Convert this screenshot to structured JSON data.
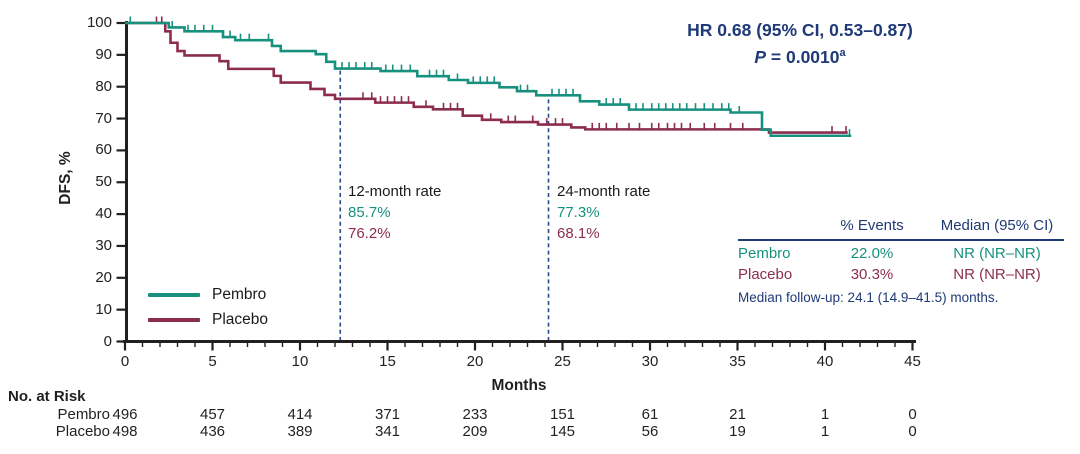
{
  "colors": {
    "pembro": "#17917E",
    "placebo": "#8C2D50",
    "navy": "#1F3A76",
    "dashed_line": "#2A4C8C",
    "axis": "#231F20"
  },
  "annotations": {
    "hr_line": "HR 0.68 (95% CI, 0.53–0.87)",
    "p_label": "P",
    "p_value": " = 0.0010",
    "p_superscript": "a"
  },
  "legend": {
    "items": [
      {
        "label": "Pembro",
        "color": "#17917E"
      },
      {
        "label": "Placebo",
        "color": "#8C2D50"
      }
    ]
  },
  "stats_table": {
    "headers": [
      "% Events",
      "Median (95% CI)"
    ],
    "rows": [
      {
        "label": "Pembro",
        "events": "22.0%",
        "median": "NR (NR–NR)",
        "color": "#17917E"
      },
      {
        "label": "Placebo",
        "events": "30.3%",
        "median": "NR (NR–NR)",
        "color": "#8C2D50"
      }
    ],
    "footnote": "Median follow-up: 24.1 (14.9–41.5) months."
  },
  "at_risk": {
    "title": "No. at Risk",
    "times": [
      0,
      5,
      10,
      15,
      20,
      25,
      30,
      35,
      40,
      45
    ],
    "rows": [
      {
        "label": "Pembro",
        "counts": [
          "496",
          "457",
          "414",
          "371",
          "233",
          "151",
          "61",
          "21",
          "1",
          "0"
        ]
      },
      {
        "label": "Placebo",
        "counts": [
          "498",
          "436",
          "389",
          "341",
          "209",
          "145",
          "56",
          "19",
          "1",
          "0"
        ]
      }
    ]
  },
  "chart_data": {
    "type": "km_step",
    "title": "",
    "xlabel": "Months",
    "ylabel": "DFS, %",
    "xlim": [
      0,
      45
    ],
    "ylim": [
      0,
      100
    ],
    "x_major_ticks": [
      0,
      5,
      10,
      15,
      20,
      25,
      30,
      35,
      40,
      45
    ],
    "x_minor_step": 1,
    "y_ticks": [
      0,
      10,
      20,
      30,
      40,
      50,
      60,
      70,
      80,
      90,
      100
    ],
    "grid": false,
    "legend_position": "lower-left",
    "series": [
      {
        "name": "Pembro",
        "color": "#17917E",
        "end_month": 41.5,
        "steps": [
          [
            2.5,
            98.6
          ],
          [
            3.4,
            97.4
          ],
          [
            5.6,
            95.6
          ],
          [
            6.3,
            94.6
          ],
          [
            8.4,
            92.8
          ],
          [
            8.9,
            91.2
          ],
          [
            10.9,
            90.2
          ],
          [
            11.5,
            87.8
          ],
          [
            12.0,
            85.7
          ],
          [
            14.6,
            84.9
          ],
          [
            16.7,
            83.3
          ],
          [
            18.5,
            82.1
          ],
          [
            19.6,
            81.2
          ],
          [
            21.4,
            79.8
          ],
          [
            22.4,
            78.6
          ],
          [
            23.5,
            77.3
          ],
          [
            26.0,
            75.4
          ],
          [
            27.1,
            74.4
          ],
          [
            28.8,
            72.8
          ],
          [
            34.6,
            71.9
          ],
          [
            36.4,
            66.5
          ],
          [
            36.9,
            64.6
          ]
        ],
        "censor_months": [
          0.3,
          2.7,
          3.6,
          4.0,
          4.5,
          5.0,
          6.0,
          6.6,
          7.1,
          8.2,
          12.4,
          12.8,
          13.2,
          13.7,
          14.1,
          14.9,
          15.3,
          15.8,
          16.3,
          17.4,
          17.8,
          18.2,
          19.0,
          19.9,
          20.3,
          20.7,
          21.1,
          22.6,
          23.0,
          24.4,
          24.8,
          25.2,
          25.6,
          27.5,
          27.9,
          28.3,
          29.2,
          29.6,
          30.1,
          30.5,
          30.9,
          31.3,
          31.7,
          32.1,
          32.6,
          33.1,
          33.6,
          34.1,
          34.5,
          35.1,
          41.4
        ],
        "landmark_rates": {
          "12_month": "85.7%",
          "24_month": "77.3%"
        }
      },
      {
        "name": "Placebo",
        "color": "#8C2D50",
        "end_month": 41.3,
        "steps": [
          [
            2.3,
            97.4
          ],
          [
            2.6,
            93.8
          ],
          [
            3.0,
            91.2
          ],
          [
            3.4,
            89.8
          ],
          [
            5.4,
            88.0
          ],
          [
            5.9,
            85.6
          ],
          [
            8.5,
            83.4
          ],
          [
            8.9,
            81.3
          ],
          [
            10.6,
            79.3
          ],
          [
            11.4,
            77.4
          ],
          [
            12.0,
            76.2
          ],
          [
            14.3,
            75.0
          ],
          [
            16.5,
            73.7
          ],
          [
            17.6,
            72.9
          ],
          [
            19.3,
            70.9
          ],
          [
            20.4,
            69.6
          ],
          [
            21.5,
            68.9
          ],
          [
            23.6,
            68.1
          ],
          [
            25.5,
            67.2
          ],
          [
            26.3,
            66.6
          ],
          [
            36.8,
            65.6
          ]
        ],
        "censor_months": [
          1.8,
          2.1,
          13.6,
          14.1,
          14.6,
          15.0,
          15.4,
          15.8,
          16.2,
          17.2,
          18.2,
          18.6,
          19.0,
          20.9,
          21.9,
          22.3,
          23.3,
          24.1,
          24.6,
          25.0,
          26.7,
          27.1,
          27.5,
          28.1,
          28.8,
          29.4,
          30.1,
          30.5,
          31.0,
          31.4,
          31.8,
          32.3,
          33.1,
          33.7,
          34.6,
          35.3,
          40.4,
          41.2
        ],
        "landmark_rates": {
          "12_month": "76.2%",
          "24_month": "68.1%"
        }
      }
    ],
    "landmarks": [
      {
        "x": 12.3,
        "title": "12-month rate",
        "values": [
          {
            "text": "85.7%",
            "color": "#17917E"
          },
          {
            "text": "76.2%",
            "color": "#8C2D50"
          }
        ]
      },
      {
        "x": 24.2,
        "title": "24-month rate",
        "values": [
          {
            "text": "77.3%",
            "color": "#17917E"
          },
          {
            "text": "68.1%",
            "color": "#8C2D50"
          }
        ]
      }
    ]
  }
}
